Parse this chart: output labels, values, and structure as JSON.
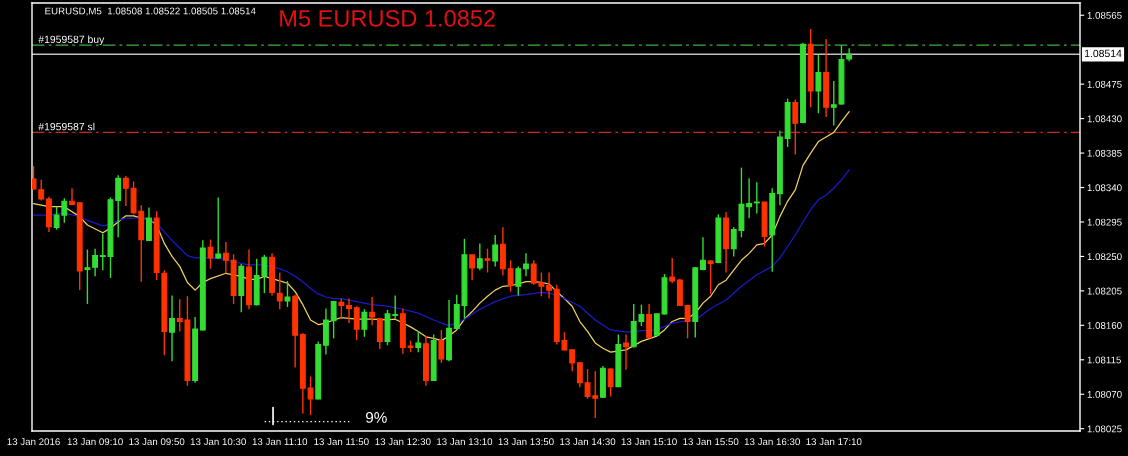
{
  "chart_data": {
    "type": "candlestick",
    "title": "M5 EURUSD 1.0852",
    "annotations": [
      "EURUSD,M5  1.08508 1.08522 1.08505 1.08514",
      "9%"
    ],
    "x": [
      "2016-01-13T08:30",
      "2016-01-13T08:35",
      "2016-01-13T08:40",
      "2016-01-13T08:45",
      "2016-01-13T08:50",
      "2016-01-13T08:55",
      "2016-01-13T09:00",
      "2016-01-13T09:05",
      "2016-01-13T09:10",
      "2016-01-13T09:15",
      "2016-01-13T09:20",
      "2016-01-13T09:25",
      "2016-01-13T09:30",
      "2016-01-13T09:35",
      "2016-01-13T09:40",
      "2016-01-13T09:45",
      "2016-01-13T09:50",
      "2016-01-13T09:55",
      "2016-01-13T10:00",
      "2016-01-13T10:05",
      "2016-01-13T10:10",
      "2016-01-13T10:15",
      "2016-01-13T10:20",
      "2016-01-13T10:25",
      "2016-01-13T10:30",
      "2016-01-13T10:35",
      "2016-01-13T10:40",
      "2016-01-13T10:45",
      "2016-01-13T10:50",
      "2016-01-13T10:55",
      "2016-01-13T11:00",
      "2016-01-13T11:05",
      "2016-01-13T11:10",
      "2016-01-13T11:15",
      "2016-01-13T11:20",
      "2016-01-13T11:25",
      "2016-01-13T11:30",
      "2016-01-13T11:35",
      "2016-01-13T11:40",
      "2016-01-13T11:45",
      "2016-01-13T11:50",
      "2016-01-13T11:55",
      "2016-01-13T12:00",
      "2016-01-13T12:05",
      "2016-01-13T12:10",
      "2016-01-13T12:15",
      "2016-01-13T12:20",
      "2016-01-13T12:25",
      "2016-01-13T12:30",
      "2016-01-13T12:35",
      "2016-01-13T12:40",
      "2016-01-13T12:45",
      "2016-01-13T12:50",
      "2016-01-13T12:55",
      "2016-01-13T13:00",
      "2016-01-13T13:05",
      "2016-01-13T13:10",
      "2016-01-13T13:15",
      "2016-01-13T13:20",
      "2016-01-13T13:25",
      "2016-01-13T13:30",
      "2016-01-13T13:35",
      "2016-01-13T13:40",
      "2016-01-13T13:45",
      "2016-01-13T13:50",
      "2016-01-13T13:55",
      "2016-01-13T14:00",
      "2016-01-13T14:05",
      "2016-01-13T14:10",
      "2016-01-13T14:15",
      "2016-01-13T14:20",
      "2016-01-13T14:25",
      "2016-01-13T14:30",
      "2016-01-13T14:35",
      "2016-01-13T14:40",
      "2016-01-13T14:45",
      "2016-01-13T14:50",
      "2016-01-13T14:55",
      "2016-01-13T15:00",
      "2016-01-13T15:05",
      "2016-01-13T15:10",
      "2016-01-13T15:15",
      "2016-01-13T15:20",
      "2016-01-13T15:25",
      "2016-01-13T15:30",
      "2016-01-13T15:35",
      "2016-01-13T15:40",
      "2016-01-13T15:45",
      "2016-01-13T15:50",
      "2016-01-13T15:55",
      "2016-01-13T16:00",
      "2016-01-13T16:05",
      "2016-01-13T16:10",
      "2016-01-13T16:15",
      "2016-01-13T16:20",
      "2016-01-13T16:25",
      "2016-01-13T16:30",
      "2016-01-13T16:35",
      "2016-01-13T16:40",
      "2016-01-13T16:45",
      "2016-01-13T16:50",
      "2016-01-13T16:55",
      "2016-01-13T17:00",
      "2016-01-13T17:05",
      "2016-01-13T17:10",
      "2016-01-13T17:15",
      "2016-01-13T17:20"
    ],
    "ohlc": [
      [
        1.08351,
        1.08368,
        1.08337,
        1.08338
      ],
      [
        1.08337,
        1.0835,
        1.08323,
        1.08325
      ],
      [
        1.08325,
        1.08328,
        1.08282,
        1.08289
      ],
      [
        1.08288,
        1.08315,
        1.08285,
        1.08304
      ],
      [
        1.08304,
        1.08326,
        1.08294,
        1.08322
      ],
      [
        1.08322,
        1.08339,
        1.08317,
        1.08318
      ],
      [
        1.0832,
        1.0832,
        1.08206,
        1.08231
      ],
      [
        1.08233,
        1.08259,
        1.08188,
        1.08235
      ],
      [
        1.08236,
        1.0826,
        1.08224,
        1.08251
      ],
      [
        1.0825,
        1.0828,
        1.08232,
        1.08251
      ],
      [
        1.0825,
        1.08327,
        1.08222,
        1.08324
      ],
      [
        1.08323,
        1.08356,
        1.08275,
        1.08352
      ],
      [
        1.08352,
        1.08355,
        1.08316,
        1.08339
      ],
      [
        1.08339,
        1.08348,
        1.08305,
        1.08307
      ],
      [
        1.08309,
        1.08317,
        1.08217,
        1.08272
      ],
      [
        1.08271,
        1.08314,
        1.08271,
        1.083
      ],
      [
        1.083,
        1.08309,
        1.08219,
        1.08229
      ],
      [
        1.08228,
        1.08232,
        1.08121,
        1.08152
      ],
      [
        1.08151,
        1.08199,
        1.08113,
        1.08169
      ],
      [
        1.08169,
        1.08194,
        1.08152,
        1.08165
      ],
      [
        1.08167,
        1.08198,
        1.08081,
        1.08088
      ],
      [
        1.08088,
        1.08171,
        1.08085,
        1.08155
      ],
      [
        1.08154,
        1.08271,
        1.08153,
        1.08261
      ],
      [
        1.08262,
        1.08272,
        1.08234,
        1.08248
      ],
      [
        1.08248,
        1.08327,
        1.08247,
        1.08253
      ],
      [
        1.08254,
        1.08269,
        1.08228,
        1.08245
      ],
      [
        1.08245,
        1.08253,
        1.08188,
        1.08199
      ],
      [
        1.08199,
        1.0824,
        1.08177,
        1.08237
      ],
      [
        1.08236,
        1.08259,
        1.08181,
        1.08187
      ],
      [
        1.08187,
        1.08247,
        1.08186,
        1.08225
      ],
      [
        1.08225,
        1.08252,
        1.08202,
        1.08249
      ],
      [
        1.08249,
        1.08254,
        1.08199,
        1.08203
      ],
      [
        1.08202,
        1.08229,
        1.08181,
        1.08192
      ],
      [
        1.08192,
        1.08218,
        1.08184,
        1.08197
      ],
      [
        1.08198,
        1.082,
        1.08105,
        1.08147
      ],
      [
        1.08148,
        1.0815,
        1.08045,
        1.08078
      ],
      [
        1.08078,
        1.08093,
        1.08043,
        1.08064
      ],
      [
        1.08064,
        1.08139,
        1.08063,
        1.08135
      ],
      [
        1.08134,
        1.08182,
        1.08122,
        1.08167
      ],
      [
        1.08166,
        1.08192,
        1.08143,
        1.08191
      ],
      [
        1.0819,
        1.08195,
        1.08169,
        1.08186
      ],
      [
        1.08186,
        1.08195,
        1.08163,
        1.08182
      ],
      [
        1.08183,
        1.08185,
        1.08141,
        1.08155
      ],
      [
        1.08155,
        1.08181,
        1.08145,
        1.08177
      ],
      [
        1.08177,
        1.08197,
        1.0816,
        1.08171
      ],
      [
        1.08169,
        1.0817,
        1.08129,
        1.08139
      ],
      [
        1.08139,
        1.0818,
        1.08134,
        1.08175
      ],
      [
        1.08173,
        1.08199,
        1.08169,
        1.08174
      ],
      [
        1.08175,
        1.08182,
        1.08123,
        1.08131
      ],
      [
        1.08133,
        1.0814,
        1.08125,
        1.08131
      ],
      [
        1.08131,
        1.08152,
        1.08125,
        1.08137
      ],
      [
        1.08136,
        1.08146,
        1.08081,
        1.08088
      ],
      [
        1.08088,
        1.08148,
        1.08088,
        1.0814
      ],
      [
        1.0814,
        1.08154,
        1.08111,
        1.08116
      ],
      [
        1.08115,
        1.08193,
        1.08113,
        1.08156
      ],
      [
        1.08156,
        1.082,
        1.08155,
        1.08187
      ],
      [
        1.08186,
        1.08273,
        1.08169,
        1.08252
      ],
      [
        1.08252,
        1.08252,
        1.08219,
        1.08235
      ],
      [
        1.08235,
        1.08267,
        1.08232,
        1.08247
      ],
      [
        1.08247,
        1.0826,
        1.08229,
        1.08245
      ],
      [
        1.08244,
        1.08278,
        1.08237,
        1.08265
      ],
      [
        1.08266,
        1.08288,
        1.08225,
        1.08234
      ],
      [
        1.08234,
        1.08245,
        1.08204,
        1.08212
      ],
      [
        1.08211,
        1.08237,
        1.08199,
        1.08234
      ],
      [
        1.08234,
        1.08254,
        1.08224,
        1.0824
      ],
      [
        1.0824,
        1.08245,
        1.08213,
        1.08215
      ],
      [
        1.08216,
        1.08229,
        1.08198,
        1.08211
      ],
      [
        1.08212,
        1.08229,
        1.08195,
        1.08206
      ],
      [
        1.08207,
        1.08213,
        1.08135,
        1.08139
      ],
      [
        1.0814,
        1.08151,
        1.08127,
        1.08128
      ],
      [
        1.08128,
        1.08128,
        1.081,
        1.08111
      ],
      [
        1.08111,
        1.08111,
        1.08079,
        1.08085
      ],
      [
        1.08085,
        1.08103,
        1.08064,
        1.08067
      ],
      [
        1.08068,
        1.081,
        1.08039,
        1.08065
      ],
      [
        1.08066,
        1.08107,
        1.08065,
        1.08104
      ],
      [
        1.08103,
        1.08104,
        1.08067,
        1.0808
      ],
      [
        1.0808,
        1.08148,
        1.0808,
        1.08135
      ],
      [
        1.08137,
        1.08148,
        1.08102,
        1.08132
      ],
      [
        1.08132,
        1.08188,
        1.08131,
        1.08165
      ],
      [
        1.08165,
        1.08187,
        1.08159,
        1.08174
      ],
      [
        1.08174,
        1.08188,
        1.08143,
        1.08144
      ],
      [
        1.08147,
        1.08175,
        1.08147,
        1.08175
      ],
      [
        1.08175,
        1.08227,
        1.08174,
        1.08222
      ],
      [
        1.08223,
        1.08248,
        1.08215,
        1.08218
      ],
      [
        1.08219,
        1.08221,
        1.08186,
        1.08186
      ],
      [
        1.08186,
        1.08187,
        1.08143,
        1.08165
      ],
      [
        1.08165,
        1.08236,
        1.08144,
        1.08235
      ],
      [
        1.08233,
        1.08275,
        1.08232,
        1.08245
      ],
      [
        1.08244,
        1.08245,
        1.08201,
        1.08241
      ],
      [
        1.08242,
        1.08305,
        1.08241,
        1.083
      ],
      [
        1.083,
        1.08308,
        1.08229,
        1.0826
      ],
      [
        1.0826,
        1.08288,
        1.0825,
        1.08285
      ],
      [
        1.08284,
        1.08366,
        1.08275,
        1.08318
      ],
      [
        1.08315,
        1.08352,
        1.083,
        1.08319
      ],
      [
        1.0832,
        1.08347,
        1.08306,
        1.08321
      ],
      [
        1.08321,
        1.08321,
        1.08263,
        1.08276
      ],
      [
        1.08278,
        1.08339,
        1.0823,
        1.08332
      ],
      [
        1.08332,
        1.08414,
        1.08317,
        1.08406
      ],
      [
        1.08404,
        1.08456,
        1.08393,
        1.08451
      ],
      [
        1.08451,
        1.08455,
        1.08383,
        1.08424
      ],
      [
        1.08425,
        1.08529,
        1.08424,
        1.08527
      ],
      [
        1.08527,
        1.08547,
        1.08445,
        1.08466
      ],
      [
        1.08466,
        1.08513,
        1.08437,
        1.0849
      ],
      [
        1.0849,
        1.08534,
        1.08432,
        1.08445
      ],
      [
        1.08445,
        1.08479,
        1.08421,
        1.08448
      ],
      [
        1.08449,
        1.08526,
        1.08448,
        1.08507
      ],
      [
        1.08508,
        1.08522,
        1.08505,
        1.08514
      ]
    ],
    "colors": [
      "#ff3300",
      "#ff3300",
      "#ff3300",
      "#33dd33",
      "#33dd33",
      "#ff3300",
      "#ff3300",
      "#33dd33",
      "#33dd33",
      "#33dd33",
      "#33dd33",
      "#33dd33",
      "#ff3300",
      "#ff3300",
      "#ff3300",
      "#33dd33",
      "#ff3300",
      "#ff3300",
      "#33dd33",
      "#ff3300",
      "#ff3300",
      "#33dd33",
      "#33dd33",
      "#ff3300",
      "#33dd33",
      "#ff3300",
      "#ff3300",
      "#33dd33",
      "#ff3300",
      "#33dd33",
      "#33dd33",
      "#ff3300",
      "#ff3300",
      "#33dd33",
      "#ff3300",
      "#ff3300",
      "#ff3300",
      "#33dd33",
      "#33dd33",
      "#33dd33",
      "#ff3300",
      "#ff3300",
      "#ff3300",
      "#33dd33",
      "#ff3300",
      "#ff3300",
      "#33dd33",
      "#33dd33",
      "#ff3300",
      "#ff3300",
      "#33dd33",
      "#ff3300",
      "#33dd33",
      "#ff3300",
      "#33dd33",
      "#33dd33",
      "#33dd33",
      "#ff3300",
      "#33dd33",
      "#ff3300",
      "#33dd33",
      "#ff3300",
      "#ff3300",
      "#33dd33",
      "#33dd33",
      "#ff3300",
      "#ff3300",
      "#ff3300",
      "#ff3300",
      "#ff3300",
      "#ff3300",
      "#ff3300",
      "#ff3300",
      "#ff3300",
      "#33dd33",
      "#ff3300",
      "#33dd33",
      "#ff3300",
      "#33dd33",
      "#33dd33",
      "#ff3300",
      "#33dd33",
      "#33dd33",
      "#ff3300",
      "#ff3300",
      "#ff3300",
      "#33dd33",
      "#33dd33",
      "#ff3300",
      "#33dd33",
      "#ff3300",
      "#33dd33",
      "#33dd33",
      "#33dd33",
      "#33dd33",
      "#ff3300",
      "#33dd33",
      "#33dd33",
      "#33dd33",
      "#ff3300",
      "#33dd33",
      "#ff3300",
      "#33dd33",
      "#ff3300",
      "#33dd33",
      "#33dd33",
      "#33dd33"
    ],
    "series": [
      {
        "type": "line",
        "color": "#f0d060",
        "x": [
          "2016-01-13T08:30",
          "2016-01-13T08:40",
          "2016-01-13T08:50",
          "2016-01-13T09:00",
          "2016-01-13T09:05",
          "2016-01-13T09:15",
          "2016-01-13T09:20",
          "2016-01-13T09:25",
          "2016-01-13T09:30",
          "2016-01-13T09:35",
          "2016-01-13T09:40",
          "2016-01-13T09:45",
          "2016-01-13T09:50",
          "2016-01-13T09:55",
          "2016-01-13T10:00",
          "2016-01-13T10:05",
          "2016-01-13T10:10",
          "2016-01-13T10:15",
          "2016-01-13T10:20",
          "2016-01-13T10:25",
          "2016-01-13T10:35",
          "2016-01-13T10:45",
          "2016-01-13T10:50",
          "2016-01-13T10:55",
          "2016-01-13T11:00",
          "2016-01-13T11:05",
          "2016-01-13T11:10",
          "2016-01-13T11:15",
          "2016-01-13T11:20",
          "2016-01-13T11:25",
          "2016-01-13T11:30",
          "2016-01-13T11:35",
          "2016-01-13T11:40",
          "2016-01-13T11:45",
          "2016-01-13T11:50",
          "2016-01-13T12:00",
          "2016-01-13T12:10",
          "2016-01-13T12:20",
          "2016-01-13T12:25",
          "2016-01-13T12:30",
          "2016-01-13T12:35",
          "2016-01-13T12:40",
          "2016-01-13T12:45",
          "2016-01-13T12:50",
          "2016-01-13T12:55",
          "2016-01-13T13:00",
          "2016-01-13T13:05",
          "2016-01-13T13:10",
          "2016-01-13T13:15",
          "2016-01-13T13:20",
          "2016-01-13T13:25",
          "2016-01-13T13:30",
          "2016-01-13T13:35",
          "2016-01-13T13:40",
          "2016-01-13T13:45",
          "2016-01-13T13:50",
          "2016-01-13T13:55",
          "2016-01-13T14:00",
          "2016-01-13T14:05",
          "2016-01-13T14:10",
          "2016-01-13T14:15",
          "2016-01-13T14:20",
          "2016-01-13T14:25",
          "2016-01-13T14:30",
          "2016-01-13T14:35",
          "2016-01-13T14:40",
          "2016-01-13T14:45",
          "2016-01-13T14:55",
          "2016-01-13T15:05",
          "2016-01-13T15:15",
          "2016-01-13T15:20",
          "2016-01-13T15:25",
          "2016-01-13T15:30",
          "2016-01-13T15:35",
          "2016-01-13T15:40",
          "2016-01-13T15:45",
          "2016-01-13T15:50",
          "2016-01-13T15:55",
          "2016-01-13T16:00",
          "2016-01-13T16:05",
          "2016-01-13T16:10",
          "2016-01-13T16:15",
          "2016-01-13T16:20",
          "2016-01-13T16:25",
          "2016-01-13T16:30",
          "2016-01-13T16:35",
          "2016-01-13T16:40",
          "2016-01-13T16:45",
          "2016-01-13T16:50",
          "2016-01-13T16:55",
          "2016-01-13T17:00",
          "2016-01-13T17:05",
          "2016-01-13T17:10",
          "2016-01-13T17:15",
          "2016-01-13T17:20"
        ],
        "values": [
          1.08319,
          1.08315,
          1.08315,
          1.08302,
          1.08291,
          1.08281,
          1.08287,
          1.08295,
          1.08303,
          1.08303,
          1.083,
          1.08299,
          1.08291,
          1.08267,
          1.0825,
          1.08237,
          1.08216,
          1.08206,
          1.08216,
          1.08221,
          1.08228,
          1.08224,
          1.0822,
          1.0822,
          1.08224,
          1.08221,
          1.08218,
          1.08215,
          1.08204,
          1.08187,
          1.08167,
          1.08161,
          1.08163,
          1.08167,
          1.0817,
          1.08168,
          1.08168,
          1.08167,
          1.08168,
          1.08163,
          1.08158,
          1.08152,
          1.08145,
          1.08143,
          1.0814,
          1.08146,
          1.08154,
          1.08168,
          1.08178,
          1.08189,
          1.08198,
          1.08206,
          1.08211,
          1.08212,
          1.08214,
          1.08217,
          1.08217,
          1.08216,
          1.08214,
          1.08204,
          1.08195,
          1.08185,
          1.08165,
          1.08152,
          1.08137,
          1.0813,
          1.08125,
          1.08128,
          1.08139,
          1.08146,
          1.08154,
          1.08165,
          1.08169,
          1.08169,
          1.08176,
          1.08189,
          1.08198,
          1.08213,
          1.08219,
          1.08232,
          1.08245,
          1.08254,
          1.08265,
          1.08267,
          1.08278,
          1.08302,
          1.08322,
          1.08337,
          1.08369,
          1.08385,
          1.084,
          1.08406,
          1.08412,
          1.08426,
          1.08439
        ]
      },
      {
        "type": "line",
        "color": "#1a1acc",
        "x": [
          "2016-01-13T08:30",
          "2016-01-13T08:40",
          "2016-01-13T08:50",
          "2016-01-13T09:00",
          "2016-01-13T09:05",
          "2016-01-13T09:15",
          "2016-01-13T09:20",
          "2016-01-13T09:25",
          "2016-01-13T09:30",
          "2016-01-13T09:40",
          "2016-01-13T09:45",
          "2016-01-13T09:50",
          "2016-01-13T09:55",
          "2016-01-13T10:00",
          "2016-01-13T10:05",
          "2016-01-13T10:10",
          "2016-01-13T10:15",
          "2016-01-13T10:25",
          "2016-01-13T10:35",
          "2016-01-13T10:40",
          "2016-01-13T10:45",
          "2016-01-13T10:50",
          "2016-01-13T11:00",
          "2016-01-13T11:05",
          "2016-01-13T11:10",
          "2016-01-13T11:15",
          "2016-01-13T11:20",
          "2016-01-13T11:25",
          "2016-01-13T11:30",
          "2016-01-13T11:35",
          "2016-01-13T11:40",
          "2016-01-13T11:45",
          "2016-01-13T11:50",
          "2016-01-13T12:00",
          "2016-01-13T12:10",
          "2016-01-13T12:20",
          "2016-01-13T12:30",
          "2016-01-13T12:40",
          "2016-01-13T12:50",
          "2016-01-13T12:55",
          "2016-01-13T13:00",
          "2016-01-13T13:05",
          "2016-01-13T13:10",
          "2016-01-13T13:20",
          "2016-01-13T13:30",
          "2016-01-13T13:40",
          "2016-01-13T13:50",
          "2016-01-13T14:00",
          "2016-01-13T14:05",
          "2016-01-13T14:10",
          "2016-01-13T14:15",
          "2016-01-13T14:25",
          "2016-01-13T14:35",
          "2016-01-13T14:45",
          "2016-01-13T14:55",
          "2016-01-13T15:05",
          "2016-01-13T15:15",
          "2016-01-13T15:25",
          "2016-01-13T15:35",
          "2016-01-13T15:40",
          "2016-01-13T15:50",
          "2016-01-13T16:00",
          "2016-01-13T16:10",
          "2016-01-13T16:20",
          "2016-01-13T16:30",
          "2016-01-13T16:35",
          "2016-01-13T16:45",
          "2016-01-13T16:50",
          "2016-01-13T16:55",
          "2016-01-13T17:00",
          "2016-01-13T17:05",
          "2016-01-13T17:10",
          "2016-01-13T17:15",
          "2016-01-13T17:20"
        ],
        "values": [
          1.08304,
          1.08304,
          1.08307,
          1.08302,
          1.08297,
          1.0829,
          1.08292,
          1.08297,
          1.083,
          1.083,
          1.08298,
          1.08294,
          1.08282,
          1.08271,
          1.08261,
          1.08251,
          1.08248,
          1.08248,
          1.08246,
          1.08243,
          1.08241,
          1.08239,
          1.08239,
          1.08236,
          1.08234,
          1.0823,
          1.08224,
          1.08217,
          1.08208,
          1.08201,
          1.08197,
          1.08195,
          1.08195,
          1.08191,
          1.08187,
          1.08185,
          1.08181,
          1.08176,
          1.08167,
          1.08163,
          1.0816,
          1.08163,
          1.08168,
          1.08181,
          1.08191,
          1.08198,
          1.082,
          1.08203,
          1.08202,
          1.08199,
          1.08195,
          1.08185,
          1.08167,
          1.08154,
          1.08151,
          1.08153,
          1.08154,
          1.08163,
          1.08166,
          1.08167,
          1.08182,
          1.08193,
          1.08211,
          1.08226,
          1.08237,
          1.08248,
          1.08278,
          1.08295,
          1.08311,
          1.08324,
          1.0833,
          1.08339,
          1.0835,
          1.08363
        ]
      }
    ],
    "ref_lines": [
      {
        "axis": "y",
        "value": 1.08526,
        "label": "#1959587 buy",
        "color": "#3fae3a",
        "line_style": "dashed"
      },
      {
        "axis": "y",
        "value": 1.08412,
        "label": "#1959587 sl",
        "color": "#c8281e",
        "line_style": "dashed"
      },
      {
        "axis": "y",
        "value": 1.08514,
        "label": "1.08514",
        "color": "#c0c0c0",
        "line_style": "solid"
      }
    ],
    "xlim": [
      "2016-01-13T08:29",
      "2016-01-13T19:50"
    ],
    "ylim": [
      1.08022,
      1.08581
    ],
    "xticks": [
      {
        "value": "2016-01-13T08:30",
        "label": "13 Jan 2016"
      },
      {
        "value": "2016-01-13T09:10",
        "label": "13 Jan 09:10"
      },
      {
        "value": "2016-01-13T09:50",
        "label": "13 Jan 09:50"
      },
      {
        "value": "2016-01-13T10:30",
        "label": "13 Jan 10:30"
      },
      {
        "value": "2016-01-13T11:10",
        "label": "13 Jan 11:10"
      },
      {
        "value": "2016-01-13T11:50",
        "label": "13 Jan 11:50"
      },
      {
        "value": "2016-01-13T12:30",
        "label": "13 Jan 12:30"
      },
      {
        "value": "2016-01-13T13:10",
        "label": "13 Jan 13:10"
      },
      {
        "value": "2016-01-13T13:50",
        "label": "13 Jan 13:50"
      },
      {
        "value": "2016-01-13T14:30",
        "label": "13 Jan 14:30"
      },
      {
        "value": "2016-01-13T15:10",
        "label": "13 Jan 15:10"
      },
      {
        "value": "2016-01-13T15:50",
        "label": "13 Jan 15:50"
      },
      {
        "value": "2016-01-13T16:30",
        "label": "13 Jan 16:30"
      },
      {
        "value": "2016-01-13T17:10",
        "label": "13 Jan 17:10"
      }
    ],
    "yticks": [
      1.08565,
      1.08475,
      {
        "value": 1.0843,
        "label": "1.08430"
      },
      1.08385,
      {
        "value": 1.0834,
        "label": "1.08340"
      },
      1.08295,
      {
        "value": 1.0825,
        "label": "1.08250"
      },
      1.08205,
      {
        "value": 1.0816,
        "label": "1.08160"
      },
      1.08115,
      {
        "value": 1.0807,
        "label": "1.08070"
      },
      1.08025
    ],
    "grid": false,
    "legend": false
  }
}
